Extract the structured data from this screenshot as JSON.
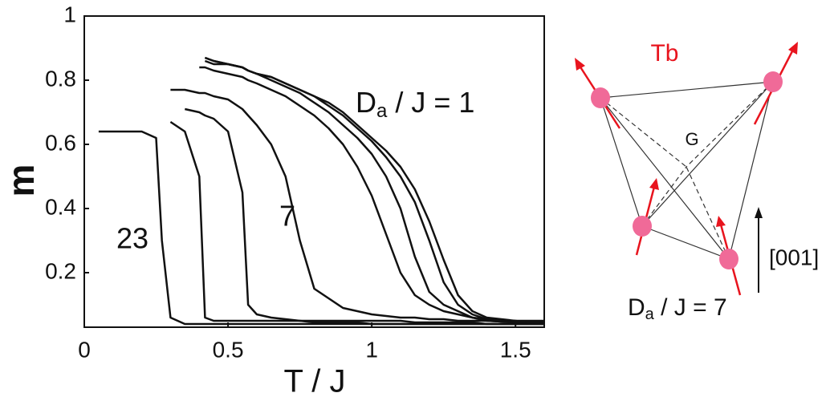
{
  "chart_data": {
    "type": "line",
    "x": [
      0.05,
      0.1,
      0.15,
      0.2,
      0.25,
      0.27,
      0.3,
      0.35,
      0.4,
      0.42,
      0.45,
      0.5,
      0.55,
      0.57,
      0.6,
      0.65,
      0.7,
      0.75,
      0.8,
      0.85,
      0.9,
      0.95,
      1.0,
      1.05,
      1.1,
      1.15,
      1.2,
      1.25,
      1.3,
      1.35,
      1.4,
      1.5,
      1.6
    ],
    "series": [
      {
        "color": "#111111",
        "values": [
          0.64,
          0.64,
          0.64,
          0.64,
          0.62,
          0.3,
          0.06,
          0.04,
          0.04,
          0.04,
          0.04,
          0.04,
          0.04,
          0.04,
          0.04,
          0.04,
          0.04,
          0.04,
          0.04,
          0.04,
          0.04,
          0.04,
          0.04,
          0.04,
          0.04,
          0.04,
          0.04,
          0.04,
          0.04,
          0.04,
          0.04,
          0.04,
          0.04
        ]
      },
      {
        "color": "#111111",
        "values": [
          null,
          null,
          null,
          null,
          null,
          null,
          0.67,
          0.64,
          0.5,
          0.06,
          0.05,
          0.05,
          0.05,
          0.05,
          0.05,
          0.05,
          0.05,
          0.05,
          0.045,
          0.045,
          0.045,
          0.045,
          0.04,
          0.04,
          0.04,
          0.04,
          0.04,
          0.04,
          0.04,
          0.04,
          0.04,
          0.04,
          0.04
        ]
      },
      {
        "color": "#111111",
        "values": [
          null,
          null,
          null,
          null,
          null,
          null,
          null,
          0.71,
          0.7,
          0.69,
          0.68,
          0.64,
          0.45,
          0.1,
          0.07,
          0.06,
          0.055,
          0.05,
          0.05,
          0.05,
          0.05,
          0.05,
          0.05,
          0.05,
          0.05,
          0.045,
          0.045,
          0.045,
          0.045,
          0.045,
          0.04,
          0.04,
          0.04
        ]
      },
      {
        "color": "#111111",
        "values": [
          null,
          null,
          null,
          null,
          null,
          null,
          0.77,
          0.77,
          0.76,
          0.76,
          0.75,
          0.74,
          0.71,
          0.69,
          0.66,
          0.6,
          0.5,
          0.3,
          0.15,
          0.12,
          0.09,
          0.08,
          0.07,
          0.065,
          0.06,
          0.06,
          0.055,
          0.055,
          0.05,
          0.05,
          0.05,
          0.045,
          0.045
        ]
      },
      {
        "color": "#111111",
        "values": [
          null,
          null,
          null,
          null,
          null,
          null,
          null,
          null,
          0.84,
          0.84,
          0.83,
          0.82,
          0.81,
          0.8,
          0.79,
          0.77,
          0.75,
          0.72,
          0.69,
          0.65,
          0.6,
          0.53,
          0.44,
          0.32,
          0.2,
          0.13,
          0.1,
          0.08,
          0.07,
          0.06,
          0.055,
          0.05,
          0.05
        ]
      },
      {
        "color": "#111111",
        "values": [
          null,
          null,
          null,
          null,
          null,
          null,
          null,
          null,
          null,
          0.87,
          0.86,
          0.85,
          0.84,
          0.83,
          0.82,
          0.8,
          0.78,
          0.76,
          0.73,
          0.7,
          0.66,
          0.62,
          0.57,
          0.5,
          0.4,
          0.25,
          0.14,
          0.1,
          0.08,
          0.06,
          0.05,
          0.045,
          0.04
        ]
      },
      {
        "color": "#111111",
        "values": [
          null,
          null,
          null,
          null,
          null,
          null,
          null,
          null,
          null,
          0.87,
          0.86,
          0.85,
          0.84,
          0.83,
          0.82,
          0.81,
          0.79,
          0.77,
          0.75,
          0.72,
          0.69,
          0.65,
          0.61,
          0.56,
          0.5,
          0.42,
          0.3,
          0.17,
          0.1,
          0.07,
          0.055,
          0.045,
          0.04
        ]
      },
      {
        "color": "#111111",
        "values": [
          null,
          null,
          null,
          null,
          null,
          null,
          null,
          null,
          null,
          0.86,
          0.85,
          0.85,
          0.84,
          0.83,
          0.82,
          0.81,
          0.79,
          0.77,
          0.75,
          0.73,
          0.7,
          0.66,
          0.62,
          0.58,
          0.53,
          0.46,
          0.36,
          0.24,
          0.13,
          0.08,
          0.06,
          0.05,
          0.04
        ]
      }
    ],
    "xlim": [
      0,
      1.6
    ],
    "ylim": [
      0.03,
      1
    ],
    "xticks": [
      0,
      0.5,
      1,
      1.5
    ],
    "yticks": [
      0.2,
      0.4,
      0.6,
      0.8,
      1
    ],
    "xlabel": "T / J",
    "ylabel": "m",
    "annotations": [
      {
        "text": "23"
      },
      {
        "text": "7"
      },
      {
        "base": "D",
        "subscript": "a",
        "suffix": " / J = 1"
      }
    ]
  },
  "diagram": {
    "atom_label": "Tb",
    "center_label": "G",
    "axis_label": "[001]",
    "caption": {
      "base": "D",
      "subscript": "a",
      "suffix": " / J = 7"
    }
  }
}
